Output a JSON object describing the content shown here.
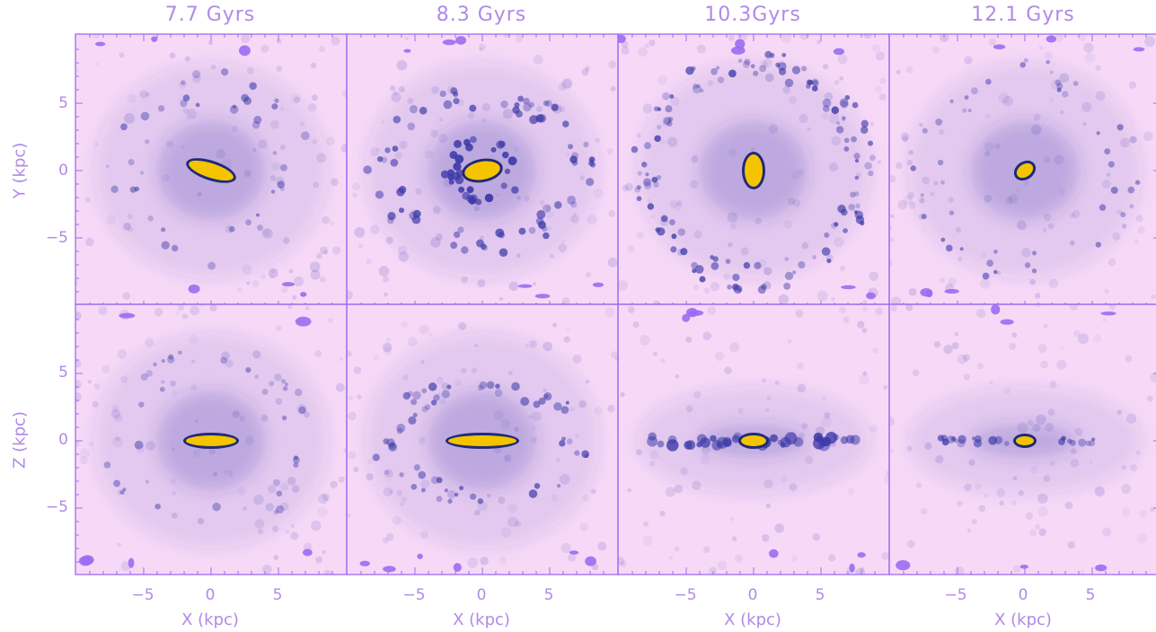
{
  "titles": [
    "7.7 Gyrs",
    "8.3 Gyrs",
    "10.3Gyrs",
    "12.1 Gyrs"
  ],
  "rows": [
    {
      "axis_label": "Y (kpc)",
      "view": "face-on"
    },
    {
      "axis_label": "Z (kpc)",
      "view": "edge-on"
    }
  ],
  "x_axis_label": "X (kpc)",
  "x_ticks": [
    "−5",
    "0",
    "5"
  ],
  "y_ticks": [
    "5",
    "0",
    "−5"
  ],
  "colors": {
    "background": "#f7d9f7",
    "frame": "#9b6cf0",
    "label": "#b08ae6",
    "gas": "#3c3aa8",
    "dense_core": "#f5c400"
  }
}
